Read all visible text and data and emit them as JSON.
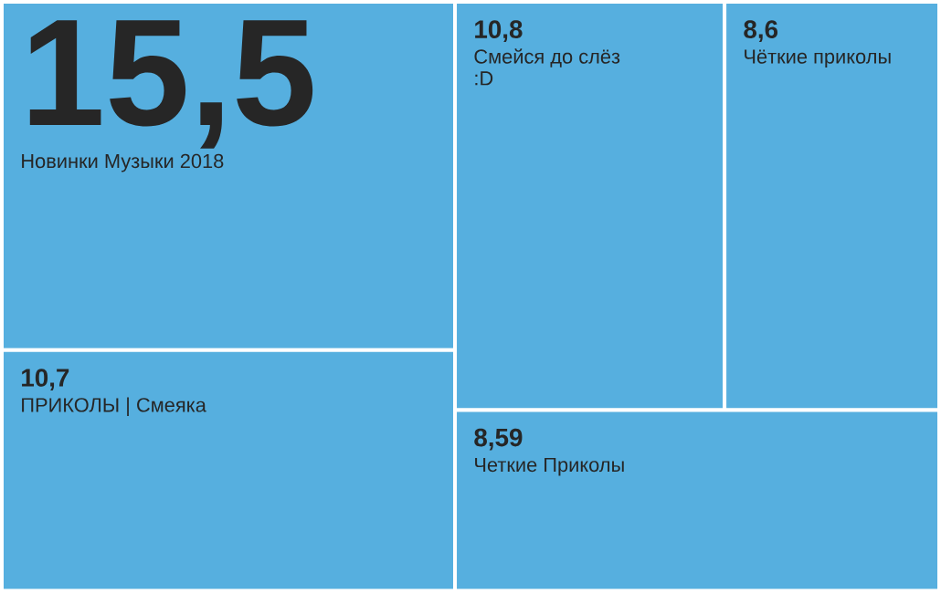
{
  "chart_data": {
    "type": "other",
    "categories": [
      "Новинки Музыки 2018",
      "ПРИКОЛЫ | Смеяка",
      "Смейся до слёз :D",
      "Чёткие приколы",
      "Четкие Приколы"
    ],
    "values": [
      15.5,
      10.7,
      10.8,
      8.6,
      8.59
    ],
    "value_labels": [
      "15,5",
      "10,7",
      "10,8",
      "8,6",
      "8,59"
    ],
    "color": "#56afdf"
  }
}
